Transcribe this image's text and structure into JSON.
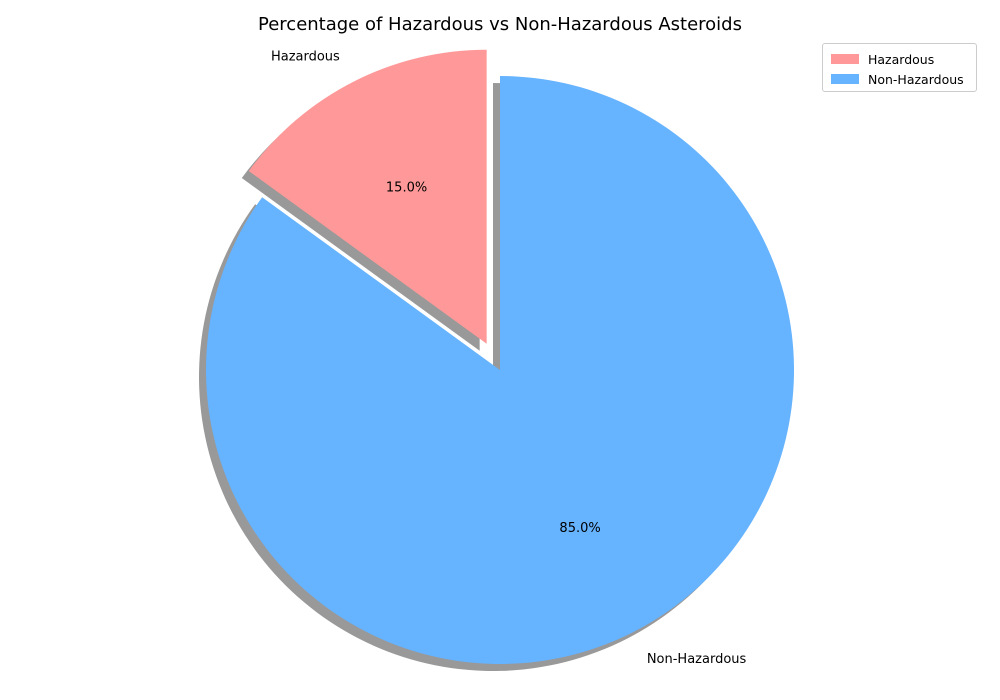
{
  "chart_data": {
    "type": "pie",
    "title": "Percentage of Hazardous vs Non-Hazardous Asteroids",
    "categories": [
      "Hazardous",
      "Non-Hazardous"
    ],
    "values": [
      15.0,
      85.0
    ],
    "value_labels": [
      "15.0%",
      "85.0%"
    ],
    "colors": [
      "#ff9999",
      "#66b3ff"
    ],
    "explode": [
      0.1,
      0
    ],
    "start_angle": 90,
    "shadow": true,
    "legend": {
      "placement": "top-right",
      "entries": [
        "Hazardous",
        "Non-Hazardous"
      ]
    }
  }
}
